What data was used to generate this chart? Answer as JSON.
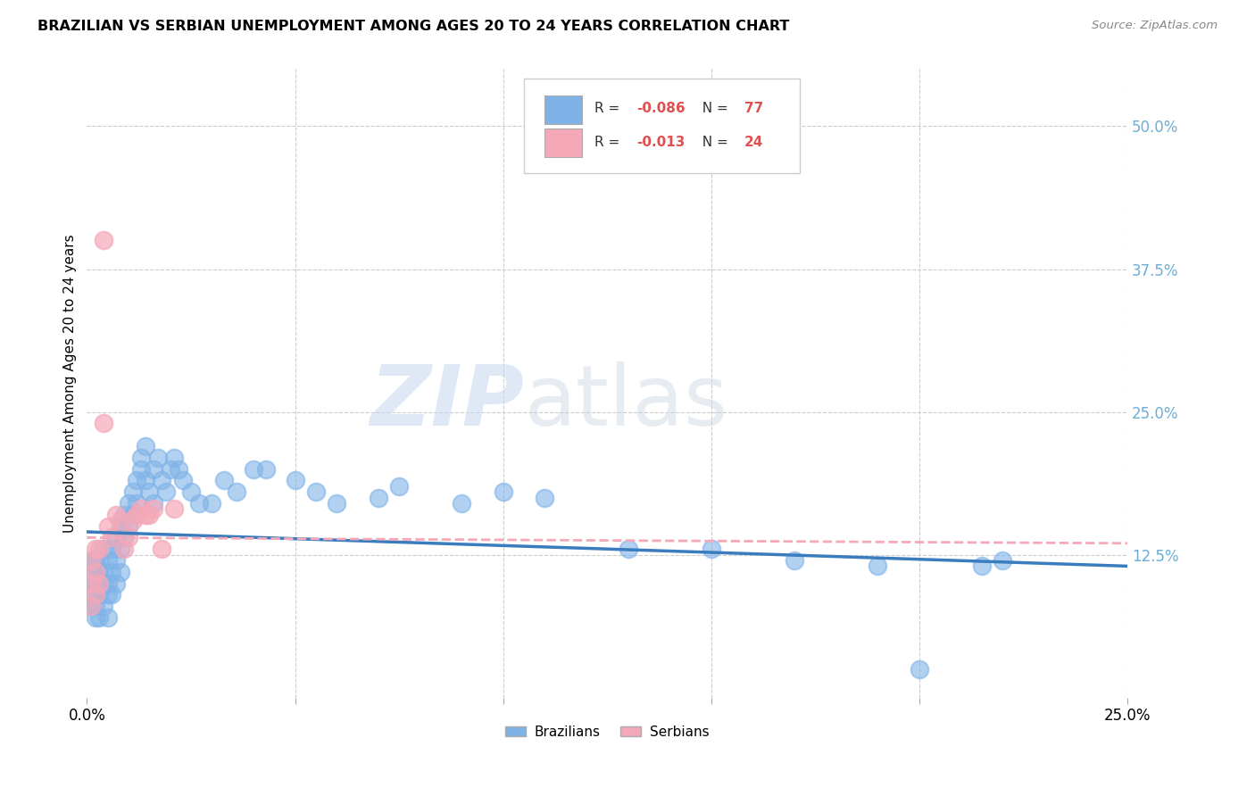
{
  "title": "BRAZILIAN VS SERBIAN UNEMPLOYMENT AMONG AGES 20 TO 24 YEARS CORRELATION CHART",
  "source": "Source: ZipAtlas.com",
  "ylabel": "Unemployment Among Ages 20 to 24 years",
  "xlim": [
    0.0,
    0.25
  ],
  "ylim": [
    0.0,
    0.55
  ],
  "xticks": [
    0.0,
    0.05,
    0.1,
    0.15,
    0.2,
    0.25
  ],
  "xticklabels": [
    "0.0%",
    "",
    "",
    "",
    "",
    "25.0%"
  ],
  "yticks_right": [
    0.0,
    0.125,
    0.25,
    0.375,
    0.5
  ],
  "ytick_right_labels": [
    "",
    "12.5%",
    "25.0%",
    "37.5%",
    "50.0%"
  ],
  "brazil_color": "#7fb3e8",
  "serbia_color": "#f4a8b8",
  "brazil_R": -0.086,
  "brazil_N": 77,
  "serbia_R": -0.013,
  "serbia_N": 24,
  "legend_label_brazil": "Brazilians",
  "legend_label_serbia": "Serbians",
  "brazil_x": [
    0.001,
    0.001,
    0.001,
    0.001,
    0.001,
    0.002,
    0.002,
    0.002,
    0.002,
    0.002,
    0.002,
    0.003,
    0.003,
    0.003,
    0.003,
    0.003,
    0.004,
    0.004,
    0.004,
    0.004,
    0.005,
    0.005,
    0.005,
    0.005,
    0.006,
    0.006,
    0.006,
    0.007,
    0.007,
    0.007,
    0.008,
    0.008,
    0.008,
    0.009,
    0.009,
    0.01,
    0.01,
    0.011,
    0.011,
    0.012,
    0.012,
    0.013,
    0.013,
    0.014,
    0.014,
    0.015,
    0.016,
    0.016,
    0.017,
    0.018,
    0.019,
    0.02,
    0.021,
    0.022,
    0.023,
    0.025,
    0.027,
    0.03,
    0.033,
    0.036,
    0.04,
    0.043,
    0.05,
    0.055,
    0.06,
    0.07,
    0.075,
    0.09,
    0.1,
    0.11,
    0.13,
    0.15,
    0.17,
    0.19,
    0.2,
    0.215,
    0.22
  ],
  "brazil_y": [
    0.1,
    0.11,
    0.12,
    0.08,
    0.09,
    0.1,
    0.12,
    0.08,
    0.09,
    0.07,
    0.11,
    0.1,
    0.12,
    0.09,
    0.07,
    0.11,
    0.1,
    0.13,
    0.08,
    0.11,
    0.12,
    0.1,
    0.09,
    0.07,
    0.13,
    0.11,
    0.09,
    0.14,
    0.12,
    0.1,
    0.15,
    0.13,
    0.11,
    0.16,
    0.14,
    0.17,
    0.15,
    0.18,
    0.16,
    0.19,
    0.17,
    0.2,
    0.21,
    0.22,
    0.19,
    0.18,
    0.2,
    0.17,
    0.21,
    0.19,
    0.18,
    0.2,
    0.21,
    0.2,
    0.19,
    0.18,
    0.17,
    0.17,
    0.19,
    0.18,
    0.2,
    0.2,
    0.19,
    0.18,
    0.17,
    0.175,
    0.185,
    0.17,
    0.18,
    0.175,
    0.13,
    0.13,
    0.12,
    0.115,
    0.025,
    0.115,
    0.12
  ],
  "serbia_x": [
    0.001,
    0.001,
    0.001,
    0.002,
    0.002,
    0.002,
    0.003,
    0.003,
    0.004,
    0.004,
    0.005,
    0.006,
    0.007,
    0.008,
    0.009,
    0.01,
    0.011,
    0.012,
    0.013,
    0.014,
    0.015,
    0.016,
    0.018,
    0.021
  ],
  "serbia_y": [
    0.1,
    0.12,
    0.08,
    0.13,
    0.11,
    0.09,
    0.13,
    0.1,
    0.4,
    0.24,
    0.15,
    0.14,
    0.16,
    0.155,
    0.13,
    0.14,
    0.155,
    0.16,
    0.165,
    0.16,
    0.16,
    0.165,
    0.13,
    0.165
  ],
  "brazil_line_y0": 0.145,
  "brazil_line_y1": 0.115,
  "serbia_line_y0": 0.14,
  "serbia_line_y1": 0.135,
  "watermark_zip": "ZIP",
  "watermark_atlas": "atlas",
  "background_color": "#ffffff",
  "grid_color": "#cccccc",
  "title_color": "#000000",
  "right_tick_color": "#6baed6",
  "brazil_line_color": "#3a7cbd",
  "serbia_line_color": "#f4a8b8"
}
